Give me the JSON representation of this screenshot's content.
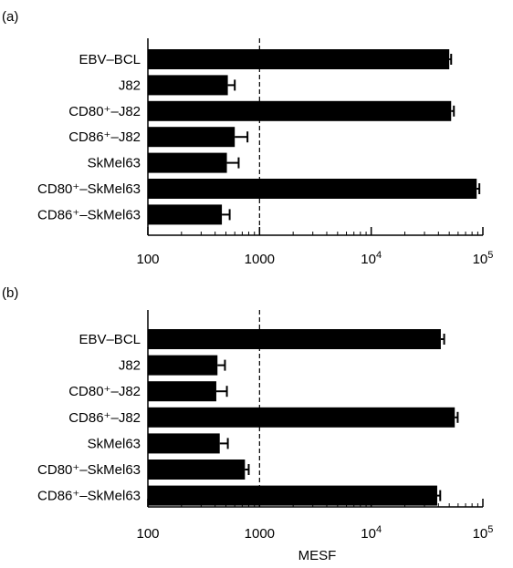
{
  "chart_data": [
    {
      "type": "bar",
      "orientation": "horizontal",
      "panel_label": "(a)",
      "categories": [
        "EBV–BCL",
        "J82",
        "CD80⁺–J82",
        "CD86⁺–J82",
        "SkMel63",
        "CD80⁺–SkMel63",
        "CD86⁺–SkMel63"
      ],
      "values": [
        50000,
        520,
        52000,
        600,
        510,
        88000,
        460
      ],
      "errors": [
        2000,
        80,
        3000,
        180,
        140,
        5000,
        80
      ],
      "xscale": "log",
      "xlim": [
        100,
        100000
      ],
      "xticks": [
        {
          "value": 100,
          "label": "100",
          "sup": ""
        },
        {
          "value": 1000,
          "label": "1000",
          "sup": ""
        },
        {
          "value": 10000,
          "label": "10",
          "sup": "4"
        },
        {
          "value": 100000,
          "label": "10",
          "sup": "5"
        }
      ],
      "reference_line": 1000,
      "xlabel": "",
      "bar_color": "#000000"
    },
    {
      "type": "bar",
      "orientation": "horizontal",
      "panel_label": "(b)",
      "categories": [
        "EBV–BCL",
        "J82",
        "CD80⁺–J82",
        "CD86⁺–J82",
        "SkMel63",
        "CD80⁺–SkMel63",
        "CD86⁺–SkMel63"
      ],
      "values": [
        42000,
        420,
        410,
        56000,
        440,
        740,
        39000
      ],
      "errors": [
        3000,
        70,
        100,
        3500,
        80,
        60,
        2500
      ],
      "xscale": "log",
      "xlim": [
        100,
        100000
      ],
      "xticks": [
        {
          "value": 100,
          "label": "100",
          "sup": ""
        },
        {
          "value": 1000,
          "label": "1000",
          "sup": ""
        },
        {
          "value": 10000,
          "label": "10",
          "sup": "4"
        },
        {
          "value": 100000,
          "label": "10",
          "sup": "5"
        }
      ],
      "reference_line": 1000,
      "xlabel": "MESF",
      "bar_color": "#000000"
    }
  ]
}
